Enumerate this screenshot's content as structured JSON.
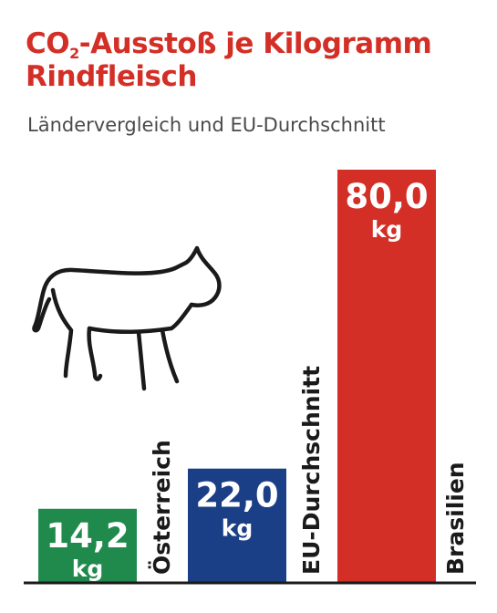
{
  "header": {
    "title_pre": "CO",
    "title_sub": "2",
    "title_line1_post": "-Ausstoß je Kilogramm",
    "title_line2": "Rindfleisch",
    "subtitle": "Ländervergleich und EU-Durchschnitt"
  },
  "colors": {
    "title": "#d32f26",
    "subtitle": "#4a4a4a",
    "axis": "#1a1a1a",
    "bar_label_text": "#ffffff",
    "category_text": "#1a1a1a"
  },
  "illustration": {
    "icon": "cow-icon"
  },
  "chart_data": {
    "type": "bar",
    "categories": [
      "Österreich",
      "EU-Durchschnitt",
      "Brasilien"
    ],
    "values": [
      14.2,
      22.0,
      80.0
    ],
    "value_labels": [
      "14,2",
      "22,0",
      "80,0"
    ],
    "unit": "kg",
    "bar_colors": [
      "#1f8a4c",
      "#1b3f86",
      "#d32f26"
    ],
    "ylim": [
      0,
      80
    ],
    "grid": false,
    "legend": "none",
    "orientation": "vertical",
    "category_label_orientation": "rotated-vertical"
  }
}
